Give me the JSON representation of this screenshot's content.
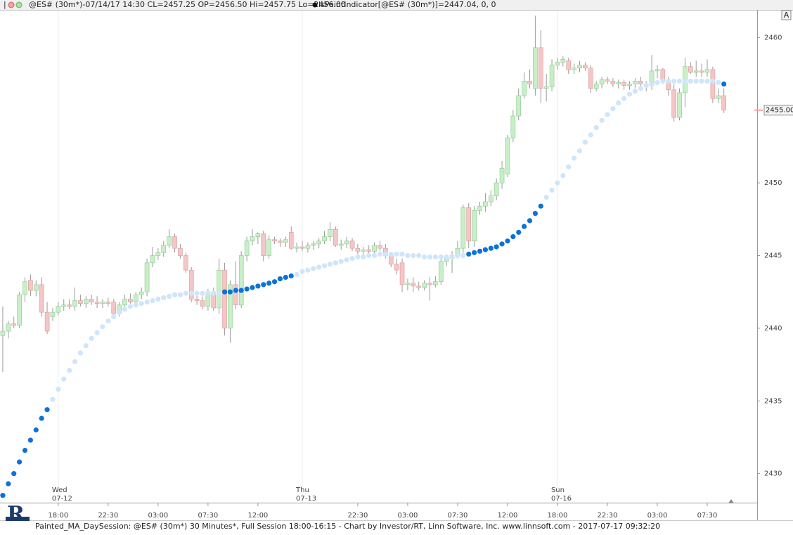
{
  "header": {
    "quote": "@ES# (30m*)-07/14/17 14:30 CL=2457.25 OP=2456.50 Hi=2457.75 Lo=2456.00",
    "indicator": "IsPaintIndicator[@ES# (30m*)]=2447.04, 0, 0",
    "button": "A"
  },
  "footer": "Painted_MA_DaySession: @ES# (30m*) 30 Minutes*, Full Session 18:00-16:15 - Chart by Investor/RT, Linn Software, Inc. www.linnsoft.com - 2017-07-17 09:32:20",
  "chart_data": {
    "type": "candlestick",
    "up_color": "#c8efc8",
    "down_color": "#f5c6c6",
    "ohlc": [
      [
        2439.5,
        2441.5,
        2437,
        2439.8
      ],
      [
        2439.8,
        2440.5,
        2439.3,
        2440.3
      ],
      [
        2440.3,
        2440.8,
        2440,
        2440.2
      ],
      [
        2440.2,
        2442.5,
        2440,
        2442.3
      ],
      [
        2442.3,
        2443.5,
        2441.8,
        2443.2
      ],
      [
        2443.3,
        2443.7,
        2442.2,
        2442.6
      ],
      [
        2442.6,
        2443.3,
        2442.2,
        2443
      ],
      [
        2443,
        2443.5,
        2440.8,
        2441.1
      ],
      [
        2441.1,
        2441.8,
        2439.6,
        2439.8
      ],
      [
        2440.8,
        2441.4,
        2440.5,
        2441.1
      ],
      [
        2441.1,
        2441.8,
        2440.9,
        2441.5
      ],
      [
        2441.5,
        2442,
        2441.2,
        2441.6
      ],
      [
        2441.6,
        2442,
        2441.3,
        2441.5
      ],
      [
        2441.5,
        2442.8,
        2441.2,
        2441.9
      ],
      [
        2441.9,
        2442.3,
        2441.5,
        2441.7
      ],
      [
        2441.7,
        2442.2,
        2441.4,
        2442
      ],
      [
        2442,
        2442.3,
        2441.6,
        2441.8
      ],
      [
        2441.8,
        2442.2,
        2441.4,
        2441.7
      ],
      [
        2441.7,
        2442,
        2441.4,
        2441.8
      ],
      [
        2441.8,
        2442.1,
        2441.5,
        2441.7
      ],
      [
        2441.8,
        2442,
        2440.8,
        2441
      ],
      [
        2441,
        2441.8,
        2440.8,
        2441.6
      ],
      [
        2441.6,
        2442.3,
        2441.4,
        2442
      ],
      [
        2442,
        2442.4,
        2441.7,
        2441.8
      ],
      [
        2441.8,
        2442.5,
        2441.6,
        2442.3
      ],
      [
        2442.3,
        2442.8,
        2442,
        2442.5
      ],
      [
        2442.5,
        2444.8,
        2442.2,
        2444.5
      ],
      [
        2444.5,
        2445.6,
        2444.2,
        2445
      ],
      [
        2445,
        2445.5,
        2444.7,
        2445.2
      ],
      [
        2445.2,
        2446,
        2444.9,
        2445.7
      ],
      [
        2445.7,
        2446.8,
        2445.5,
        2446.3
      ],
      [
        2446.3,
        2446.5,
        2445.2,
        2445.5
      ],
      [
        2445.5,
        2445.8,
        2444.8,
        2445
      ],
      [
        2445,
        2445.2,
        2443.8,
        2444
      ],
      [
        2444,
        2444.2,
        2441.8,
        2442
      ],
      [
        2442,
        2442.5,
        2441.6,
        2441.9
      ],
      [
        2441.9,
        2442.2,
        2441.3,
        2441.5
      ],
      [
        2441.5,
        2442.7,
        2441.2,
        2442.5
      ],
      [
        2442.5,
        2442.8,
        2441.2,
        2441.4
      ],
      [
        2441.4,
        2444.8,
        2441,
        2444
      ],
      [
        2444,
        2444.5,
        2439.5,
        2440
      ],
      [
        2440,
        2443.3,
        2439,
        2443
      ],
      [
        2443,
        2444.6,
        2441.3,
        2441.6
      ],
      [
        2441.6,
        2445.3,
        2441.4,
        2445
      ],
      [
        2445,
        2446.3,
        2444.6,
        2446
      ],
      [
        2446,
        2446.8,
        2445.7,
        2446.3
      ],
      [
        2446.3,
        2446.6,
        2445.8,
        2446.5
      ],
      [
        2446.5,
        2446.7,
        2444.6,
        2445
      ],
      [
        2445,
        2446.4,
        2444.8,
        2446.1
      ],
      [
        2446.1,
        2446.3,
        2445.8,
        2446
      ],
      [
        2446,
        2446.2,
        2445.6,
        2445.9
      ],
      [
        2445.9,
        2446.3,
        2445.6,
        2446.1
      ],
      [
        2446.6,
        2447,
        2445.4,
        2445.5
      ],
      [
        2445.5,
        2445.9,
        2445.2,
        2445.6
      ],
      [
        2445.6,
        2446,
        2445.3,
        2445.5
      ],
      [
        2445.5,
        2445.9,
        2445.2,
        2445.7
      ],
      [
        2445.7,
        2446,
        2445.4,
        2445.8
      ],
      [
        2445.8,
        2446.2,
        2445.5,
        2446
      ],
      [
        2446,
        2446.7,
        2445.8,
        2446.3
      ],
      [
        2446.3,
        2447.3,
        2446,
        2446.8
      ],
      [
        2446.8,
        2447,
        2445.6,
        2445.7
      ],
      [
        2445.7,
        2446.1,
        2445.4,
        2445.8
      ],
      [
        2445.8,
        2446.3,
        2445.5,
        2446
      ],
      [
        2446,
        2446.2,
        2445.3,
        2445.5
      ],
      [
        2445.5,
        2445.8,
        2445.1,
        2445.3
      ],
      [
        2445.3,
        2445.6,
        2445,
        2445.4
      ],
      [
        2445.4,
        2445.7,
        2445.1,
        2445.3
      ],
      [
        2445.3,
        2445.9,
        2445.1,
        2445.7
      ],
      [
        2445.7,
        2446,
        2445.3,
        2445.5
      ],
      [
        2445.5,
        2445.8,
        2444.8,
        2445
      ],
      [
        2445,
        2445.2,
        2444.2,
        2444.4
      ],
      [
        2444.4,
        2444.8,
        2443.7,
        2444
      ],
      [
        2444.5,
        2444.8,
        2442.5,
        2443
      ],
      [
        2443,
        2443.4,
        2442.6,
        2443.1
      ],
      [
        2443.1,
        2443.5,
        2442.5,
        2442.9
      ],
      [
        2442.9,
        2443.2,
        2442.6,
        2442.8
      ],
      [
        2442.8,
        2443.3,
        2442.6,
        2443.1
      ],
      [
        2443.1,
        2443.5,
        2441.9,
        2443
      ],
      [
        2443,
        2443.6,
        2442.8,
        2443.2
      ],
      [
        2443.2,
        2444.8,
        2443,
        2444.6
      ],
      [
        2444.6,
        2445,
        2444.3,
        2444.8
      ],
      [
        2444.8,
        2445.3,
        2443.8,
        2445
      ],
      [
        2445,
        2446,
        2444.8,
        2445.5
      ],
      [
        2445.5,
        2448.5,
        2445.2,
        2448.3
      ],
      [
        2448.3,
        2448.6,
        2445.5,
        2446
      ],
      [
        2446,
        2448.4,
        2445.6,
        2448.1
      ],
      [
        2448.1,
        2448.7,
        2447.8,
        2448.4
      ],
      [
        2448.4,
        2449.3,
        2448,
        2448.7
      ],
      [
        2448.7,
        2449.5,
        2448.4,
        2449.1
      ],
      [
        2449.1,
        2450.3,
        2448.8,
        2450
      ],
      [
        2450,
        2451.5,
        2449.6,
        2451
      ],
      [
        2450.6,
        2453.3,
        2450.4,
        2453.1
      ],
      [
        2453.1,
        2455,
        2452.8,
        2454.6
      ],
      [
        2454.6,
        2456.5,
        2454.3,
        2456
      ],
      [
        2456,
        2457.6,
        2455.8,
        2457
      ],
      [
        2457,
        2457.8,
        2456.5,
        2456.8
      ],
      [
        2456.5,
        2461.5,
        2456,
        2459.3
      ],
      [
        2459.3,
        2460.5,
        2455.5,
        2456.5
      ],
      [
        2456.5,
        2457.5,
        2455.6,
        2456.6
      ],
      [
        2456.6,
        2458.5,
        2456.3,
        2458.1
      ],
      [
        2458.1,
        2458.6,
        2457.8,
        2458.3
      ],
      [
        2458.3,
        2458.7,
        2458,
        2458.5
      ],
      [
        2458.4,
        2458.6,
        2457.5,
        2457.8
      ],
      [
        2457.8,
        2458.2,
        2457.5,
        2457.9
      ],
      [
        2457.9,
        2458.4,
        2457.6,
        2458.1
      ],
      [
        2458.1,
        2458.3,
        2457.7,
        2457.9
      ],
      [
        2457.9,
        2458.1,
        2456.2,
        2456.5
      ],
      [
        2456.5,
        2457,
        2456.3,
        2456.8
      ],
      [
        2456.8,
        2457.3,
        2456.5,
        2457.1
      ],
      [
        2457.1,
        2457.3,
        2456.8,
        2457
      ],
      [
        2457,
        2457.2,
        2456.6,
        2456.8
      ],
      [
        2456.8,
        2457.1,
        2456.5,
        2456.9
      ],
      [
        2456.9,
        2457.1,
        2456.4,
        2456.7
      ],
      [
        2456.7,
        2457,
        2456.4,
        2456.8
      ],
      [
        2456.8,
        2457.2,
        2456.5,
        2457
      ],
      [
        2457,
        2457.3,
        2456.5,
        2456.8
      ],
      [
        2456.8,
        2457,
        2456.3,
        2456.7
      ],
      [
        2456.7,
        2458.8,
        2456.4,
        2457.7
      ],
      [
        2457.7,
        2458.1,
        2457.2,
        2457.8
      ],
      [
        2457.8,
        2457.9,
        2456.8,
        2457
      ],
      [
        2457,
        2457.3,
        2456,
        2456.4
      ],
      [
        2456.4,
        2456.8,
        2454.2,
        2454.5
      ],
      [
        2454.5,
        2456.5,
        2454.3,
        2456.2
      ],
      [
        2456.2,
        2458.6,
        2455.2,
        2458
      ],
      [
        2458,
        2458.3,
        2457.5,
        2457.6
      ],
      [
        2457.6,
        2458.4,
        2457.3,
        2457.7
      ],
      [
        2457.7,
        2458.2,
        2457.3,
        2457.6
      ],
      [
        2457.6,
        2458.5,
        2457.3,
        2457.8
      ],
      [
        2457.8,
        2458,
        2455.5,
        2455.8
      ],
      [
        2455.8,
        2456.5,
        2455.5,
        2456
      ],
      [
        2456,
        2456.5,
        2454.8,
        2455
      ]
    ],
    "indicator": {
      "values": [
        2428.5,
        2429.3,
        2430,
        2430.8,
        2431.6,
        2432.3,
        2433,
        2433.8,
        2434.4,
        2435.1,
        2435.8,
        2436.5,
        2437.1,
        2437.7,
        2438.3,
        2438.8,
        2439.3,
        2439.7,
        2440.1,
        2440.5,
        2440.8,
        2441.1,
        2441.3,
        2441.5,
        2441.6,
        2441.7,
        2441.8,
        2441.9,
        2442,
        2442.1,
        2442.2,
        2442.3,
        2442.3,
        2442.4,
        2442.4,
        2442.4,
        2442.4,
        2442.4,
        2442.4,
        2442.4,
        2442.5,
        2442.5,
        2442.6,
        2442.6,
        2442.7,
        2442.8,
        2442.9,
        2443,
        2443.1,
        2443.2,
        2443.4,
        2443.5,
        2443.6,
        2443.7,
        2443.9,
        2444,
        2444.1,
        2444.2,
        2444.3,
        2444.4,
        2444.5,
        2444.6,
        2444.7,
        2444.8,
        2444.9,
        2444.9,
        2445,
        2445,
        2445.1,
        2445.1,
        2445.1,
        2445.1,
        2445.1,
        2445,
        2445,
        2445,
        2444.9,
        2444.9,
        2444.9,
        2444.9,
        2444.9,
        2444.9,
        2445,
        2445,
        2445.1,
        2445.2,
        2445.3,
        2445.4,
        2445.5,
        2445.6,
        2445.8,
        2446,
        2446.3,
        2446.6,
        2447,
        2447.4,
        2447.9,
        2448.4,
        2449,
        2449.5,
        2450,
        2450.5,
        2451.1,
        2451.7,
        2452.2,
        2452.8,
        2453.3,
        2453.8,
        2454.3,
        2454.7,
        2455.1,
        2455.5,
        2455.8,
        2456.1,
        2456.3,
        2456.5,
        2456.7,
        2456.8,
        2456.9,
        2457,
        2457,
        2457,
        2457,
        2457,
        2457,
        2457,
        2457,
        2457,
        2457,
        2456.9,
        2456.8
      ],
      "color": "#cfe5fa",
      "painted_color": "#0b72d9",
      "painted": [
        [
          0,
          8
        ],
        [
          40,
          52
        ],
        [
          84,
          97
        ],
        [
          130,
          130
        ]
      ]
    },
    "xlim": [
      -0.5,
      136
    ],
    "xticks": [
      {
        "value": 10,
        "label": "18:00"
      },
      {
        "value": 19,
        "label": "22:30"
      },
      {
        "value": 28,
        "label": "03:00"
      },
      {
        "value": 37,
        "label": "07:30"
      },
      {
        "value": 46,
        "label": "12:00"
      },
      {
        "value": 64,
        "label": "22:30"
      },
      {
        "value": 73,
        "label": "03:00"
      },
      {
        "value": 82,
        "label": "07:30"
      },
      {
        "value": 91,
        "label": "12:00"
      },
      {
        "value": 100,
        "label": "18:00"
      },
      {
        "value": 109,
        "label": "22:30"
      },
      {
        "value": 118,
        "label": "03:00"
      },
      {
        "value": 127,
        "label": "07:30"
      }
    ],
    "sessions": [
      {
        "index": 10,
        "day": "Wed",
        "date": "07-12"
      },
      {
        "index": 54,
        "day": "Thu",
        "date": "07-13"
      },
      {
        "index": 100,
        "day": "Sun",
        "date": "07-16"
      }
    ],
    "ylim": [
      2428,
      2462
    ],
    "yticks": [
      2430,
      2435,
      2440,
      2445,
      2450,
      2455,
      2460
    ],
    "last_price": {
      "value": 2455,
      "label": "2455.00"
    }
  }
}
